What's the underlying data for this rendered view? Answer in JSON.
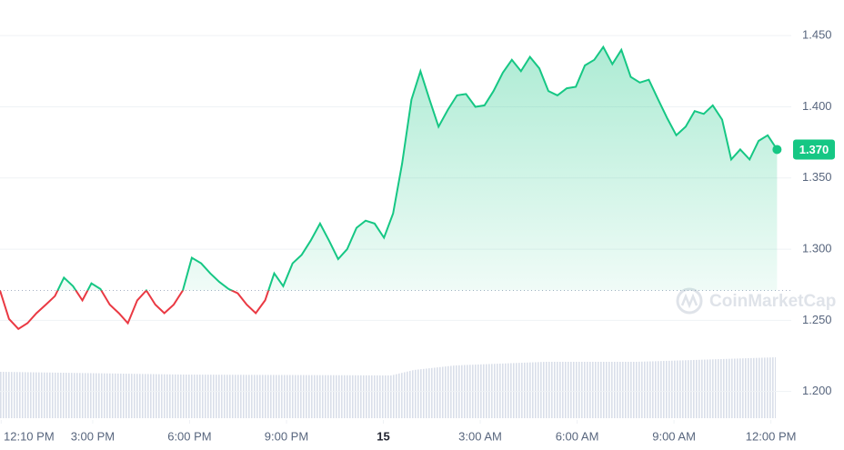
{
  "chart_data": {
    "type": "line",
    "x": [
      12.13,
      12.41,
      12.7,
      12.98,
      13.26,
      13.55,
      13.83,
      14.11,
      14.39,
      14.68,
      14.96,
      15.24,
      15.53,
      15.81,
      16.09,
      16.38,
      16.66,
      16.94,
      17.22,
      17.51,
      17.79,
      18.07,
      18.36,
      18.64,
      18.92,
      19.21,
      19.49,
      19.77,
      20.05,
      20.34,
      20.62,
      20.9,
      21.19,
      21.47,
      21.75,
      22.04,
      22.32,
      22.6,
      22.88,
      23.17,
      23.45,
      23.73,
      24.02,
      24.3,
      24.58,
      24.87,
      25.15,
      25.43,
      25.71,
      26.0,
      26.28,
      26.56,
      26.85,
      27.13,
      27.41,
      27.7,
      27.98,
      28.26,
      28.54,
      28.83,
      29.11,
      29.39,
      29.68,
      29.96,
      30.24,
      30.53,
      30.81,
      31.09,
      31.37,
      31.66,
      31.94,
      32.22,
      32.51,
      32.79,
      33.07,
      33.36,
      33.64,
      33.92,
      34.2,
      34.49,
      34.77,
      35.05,
      35.34,
      35.62,
      35.9,
      36.19
    ],
    "values": [
      1.271,
      1.251,
      1.244,
      1.248,
      1.255,
      1.261,
      1.267,
      1.28,
      1.274,
      1.264,
      1.276,
      1.272,
      1.261,
      1.255,
      1.248,
      1.264,
      1.271,
      1.261,
      1.255,
      1.261,
      1.271,
      1.294,
      1.29,
      1.283,
      1.277,
      1.272,
      1.269,
      1.261,
      1.255,
      1.264,
      1.283,
      1.274,
      1.29,
      1.296,
      1.306,
      1.318,
      1.306,
      1.293,
      1.3,
      1.315,
      1.32,
      1.318,
      1.308,
      1.325,
      1.36,
      1.405,
      1.425,
      1.405,
      1.386,
      1.398,
      1.408,
      1.409,
      1.4,
      1.401,
      1.411,
      1.424,
      1.433,
      1.425,
      1.435,
      1.427,
      1.411,
      1.408,
      1.413,
      1.414,
      1.429,
      1.433,
      1.442,
      1.43,
      1.44,
      1.421,
      1.417,
      1.419,
      1.405,
      1.392,
      1.38,
      1.386,
      1.397,
      1.395,
      1.401,
      1.391,
      1.363,
      1.37,
      1.363,
      1.376,
      1.38,
      1.37
    ],
    "up_color": "#16c784",
    "down_color": "#ea3943",
    "xlim": [
      12.13,
      36.63
    ],
    "xticks": [
      {
        "value": 12.1667,
        "label": "12:10 PM"
      },
      {
        "value": 15,
        "label": "3:00 PM"
      },
      {
        "value": 18,
        "label": "6:00 PM"
      },
      {
        "value": 21,
        "label": "9:00 PM"
      },
      {
        "value": 24,
        "label": "15"
      },
      {
        "value": 27,
        "label": "3:00 AM"
      },
      {
        "value": 30,
        "label": "6:00 AM"
      },
      {
        "value": 33,
        "label": "9:00 AM"
      },
      {
        "value": 36,
        "label": "12:00 PM"
      }
    ],
    "ylim": [
      1.18,
      1.475
    ],
    "yticks": [
      {
        "value": 1.45,
        "label": "1.450"
      },
      {
        "value": 1.4,
        "label": "1.400"
      },
      {
        "value": 1.35,
        "label": "1.350"
      },
      {
        "value": 1.3,
        "label": "1.300"
      },
      {
        "value": 1.25,
        "label": "1.250"
      },
      {
        "value": 1.2,
        "label": "1.200"
      }
    ],
    "grid": true,
    "current_price": {
      "value": 1.37,
      "label": "1.370"
    },
    "watermark": "CoinMarketCap"
  }
}
